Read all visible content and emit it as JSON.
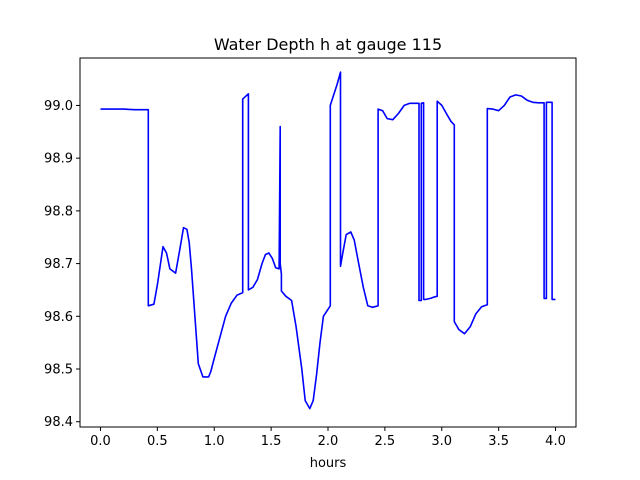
{
  "chart_data": {
    "type": "line",
    "title": "Water Depth h at gauge 115",
    "xlabel": "hours",
    "ylabel": "",
    "xlim": [
      -0.18,
      4.18
    ],
    "ylim": [
      98.39,
      99.09
    ],
    "xticks": [
      0.0,
      0.5,
      1.0,
      1.5,
      2.0,
      2.5,
      3.0,
      3.5,
      4.0
    ],
    "xtick_labels": [
      "0.0",
      "0.5",
      "1.0",
      "1.5",
      "2.0",
      "2.5",
      "3.0",
      "3.5",
      "4.0"
    ],
    "yticks": [
      98.4,
      98.5,
      98.6,
      98.7,
      98.8,
      98.9,
      99.0
    ],
    "ytick_labels": [
      "98.4",
      "98.5",
      "98.6",
      "98.7",
      "98.8",
      "98.9",
      "99.0"
    ],
    "grid": false,
    "series": [
      {
        "color": "#0000ff",
        "x": [
          0.0,
          0.1,
          0.2,
          0.3,
          0.42,
          0.42,
          0.47,
          0.5,
          0.55,
          0.58,
          0.61,
          0.66,
          0.7,
          0.73,
          0.76,
          0.78,
          0.8,
          0.83,
          0.86,
          0.9,
          0.95,
          0.97,
          1.0,
          1.05,
          1.1,
          1.15,
          1.2,
          1.25,
          1.25,
          1.3,
          1.3,
          1.34,
          1.38,
          1.42,
          1.45,
          1.48,
          1.51,
          1.54,
          1.57,
          1.58,
          1.58,
          1.59,
          1.59,
          1.63,
          1.68,
          1.72,
          1.77,
          1.8,
          1.84,
          1.87,
          1.9,
          1.93,
          1.96,
          2.02,
          2.02,
          2.05,
          2.08,
          2.11,
          2.11,
          2.13,
          2.16,
          2.2,
          2.23,
          2.27,
          2.31,
          2.35,
          2.39,
          2.44,
          2.44,
          2.48,
          2.52,
          2.57,
          2.62,
          2.67,
          2.72,
          2.76,
          2.8,
          2.8,
          2.82,
          2.82,
          2.84,
          2.84,
          2.86,
          2.9,
          2.94,
          2.96,
          2.96,
          3.0,
          3.04,
          3.08,
          3.11,
          3.11,
          3.15,
          3.2,
          3.25,
          3.3,
          3.35,
          3.4,
          3.4,
          3.45,
          3.5,
          3.55,
          3.6,
          3.65,
          3.7,
          3.75,
          3.8,
          3.85,
          3.9,
          3.9,
          3.92,
          3.92,
          3.97,
          3.97,
          4.0
        ],
        "y": [
          98.993,
          98.993,
          98.993,
          98.992,
          98.992,
          98.62,
          98.623,
          98.66,
          98.732,
          98.72,
          98.69,
          98.682,
          98.73,
          98.768,
          98.765,
          98.74,
          98.69,
          98.6,
          98.51,
          98.485,
          98.485,
          98.495,
          98.52,
          98.56,
          98.6,
          98.625,
          98.64,
          98.645,
          99.012,
          99.022,
          98.65,
          98.655,
          98.67,
          98.7,
          98.717,
          98.72,
          98.71,
          98.692,
          98.69,
          98.96,
          98.7,
          98.68,
          98.648,
          98.638,
          98.63,
          98.58,
          98.5,
          98.44,
          98.425,
          98.44,
          98.49,
          98.55,
          98.6,
          98.62,
          99.0,
          99.02,
          99.04,
          99.063,
          98.695,
          98.72,
          98.755,
          98.76,
          98.745,
          98.7,
          98.655,
          98.62,
          98.617,
          98.62,
          98.993,
          98.99,
          98.975,
          98.973,
          98.985,
          99.0,
          99.004,
          99.004,
          99.004,
          98.63,
          98.63,
          99.004,
          99.005,
          98.632,
          98.632,
          98.634,
          98.637,
          98.638,
          99.008,
          99.0,
          98.985,
          98.97,
          98.963,
          98.59,
          98.575,
          98.567,
          98.58,
          98.605,
          98.618,
          98.622,
          98.994,
          98.993,
          98.99,
          99.0,
          99.016,
          99.02,
          99.018,
          99.01,
          99.006,
          99.005,
          99.005,
          98.634,
          98.634,
          99.006,
          99.006,
          98.632,
          98.632
        ]
      }
    ]
  }
}
